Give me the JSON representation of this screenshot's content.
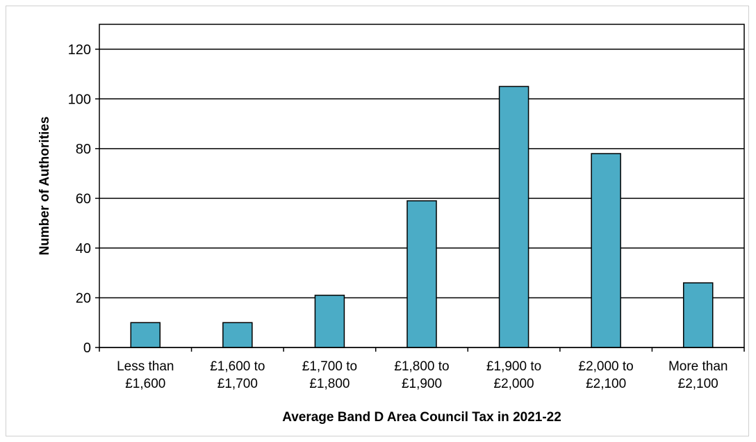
{
  "chart_data": {
    "type": "bar",
    "xlabel": "Average Band D Area Council Tax in 2021-22",
    "ylabel": "Number of Authorities",
    "ylim": [
      0,
      130
    ],
    "yticks": [
      "0",
      "20",
      "40",
      "60",
      "80",
      "100",
      "120"
    ],
    "categories": [
      [
        "Less than",
        "£1,600"
      ],
      [
        "£1,600 to",
        "£1,700"
      ],
      [
        "£1,700 to",
        "£1,800"
      ],
      [
        "£1,800 to",
        "£1,900"
      ],
      [
        "£1,900 to",
        "£2,000"
      ],
      [
        "£2,000  to",
        "£2,100"
      ],
      [
        "More than",
        "£2,100"
      ]
    ],
    "values": [
      10,
      10,
      21,
      59,
      105,
      78,
      26
    ],
    "grid": true,
    "legend": "none",
    "bar_color": "#4bacc6"
  }
}
